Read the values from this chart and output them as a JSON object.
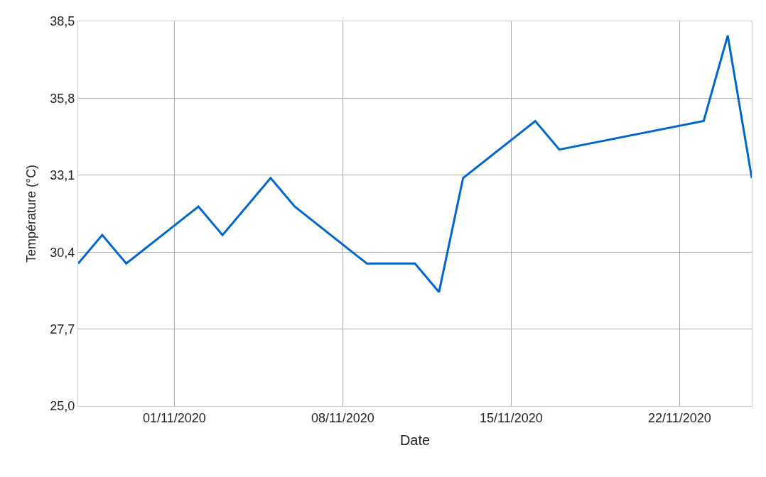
{
  "chart_data": {
    "type": "line",
    "xlabel": "Date",
    "ylabel": "Température (°C)",
    "x": [
      "2020-10-28",
      "2020-10-29",
      "2020-10-30",
      "2020-11-02",
      "2020-11-03",
      "2020-11-05",
      "2020-11-06",
      "2020-11-09",
      "2020-11-11",
      "2020-11-12",
      "2020-11-13",
      "2020-11-16",
      "2020-11-17",
      "2020-11-23",
      "2020-11-24",
      "2020-11-25"
    ],
    "series": [
      {
        "color": "#0066cc",
        "values": [
          30.0,
          31.0,
          30.0,
          32.0,
          31.0,
          33.0,
          32.0,
          30.0,
          30.0,
          29.0,
          33.0,
          35.0,
          34.0,
          35.0,
          38.0,
          33.0
        ]
      }
    ],
    "xlim": [
      "2020-10-28",
      "2020-11-25"
    ],
    "xticks": [
      {
        "value": "2020-11-01",
        "label": "01/11/2020"
      },
      {
        "value": "2020-11-08",
        "label": "08/11/2020"
      },
      {
        "value": "2020-11-15",
        "label": "15/11/2020"
      },
      {
        "value": "2020-11-22",
        "label": "22/11/2020"
      }
    ],
    "ylim": [
      25.0,
      38.5
    ],
    "yticks": [
      {
        "value": 25.0,
        "label": "25,0"
      },
      {
        "value": 27.7,
        "label": "27,7"
      },
      {
        "value": 30.4,
        "label": "30,4"
      },
      {
        "value": 33.1,
        "label": "33,1"
      },
      {
        "value": 35.8,
        "label": "35,8"
      },
      {
        "value": 38.5,
        "label": "38,5"
      }
    ],
    "grid": true,
    "marker": "none",
    "line_style": "solid"
  }
}
